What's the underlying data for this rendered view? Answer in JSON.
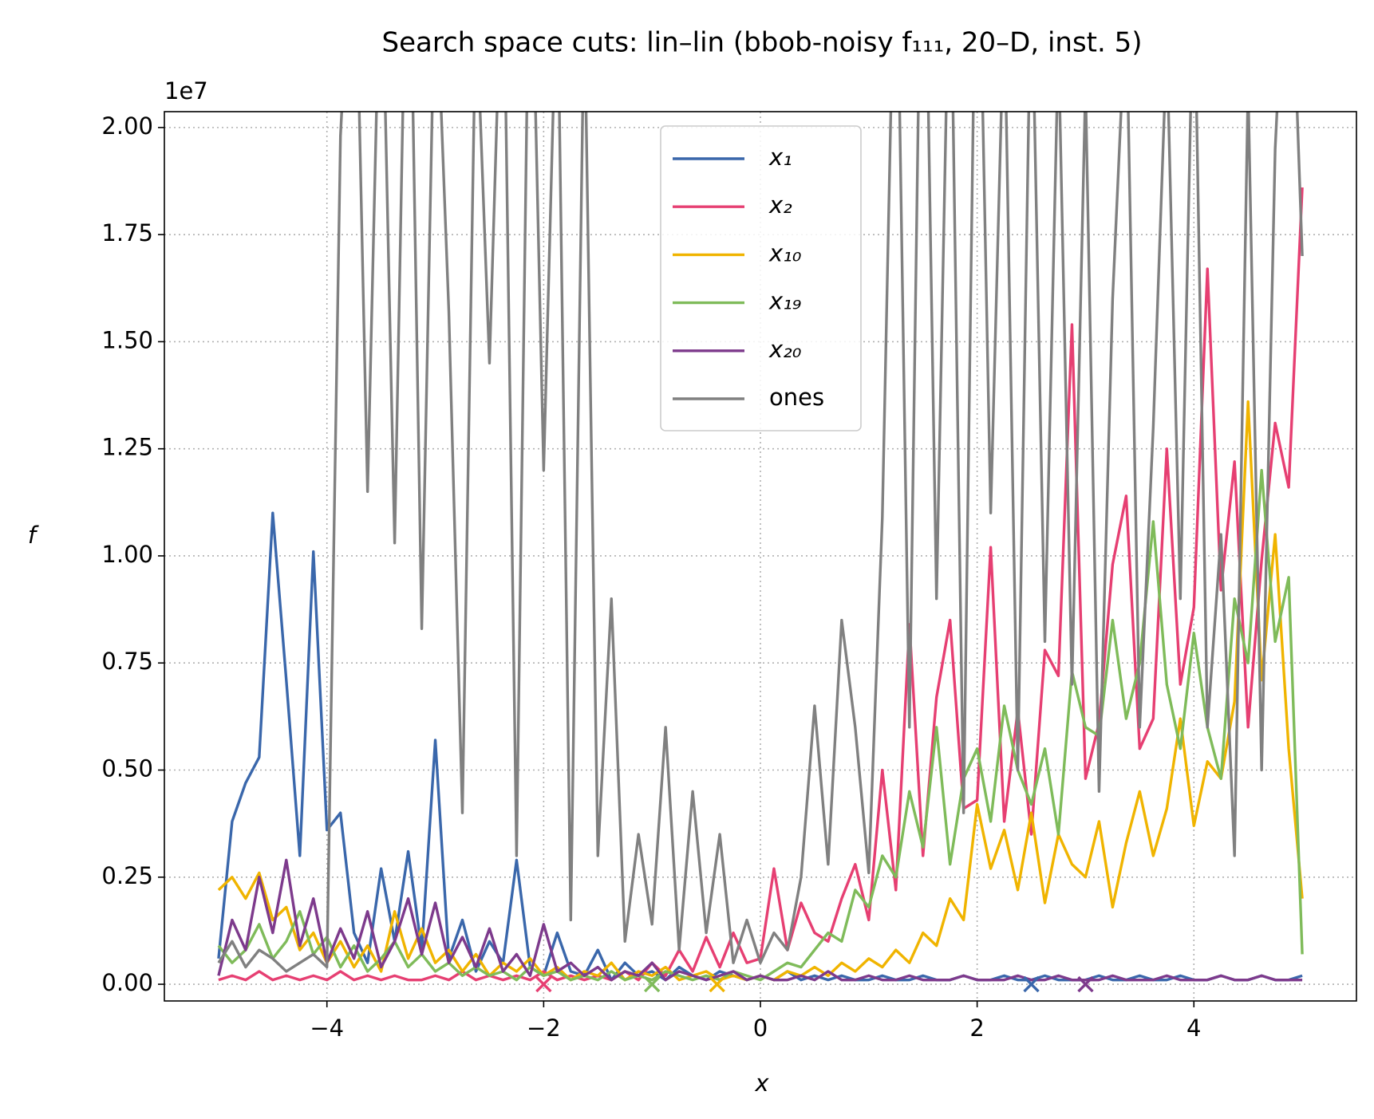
{
  "chart_data": {
    "type": "line",
    "title": "Search space cuts: lin–lin (bbob-noisy f₁₁₁, 20–D, inst. 5)",
    "x_label": "x",
    "y_label": "f",
    "y_offset_label": "1e7",
    "xlim": [
      -5.5,
      5.5
    ],
    "ylim": [
      -0.039,
      2.037
    ],
    "xticks": [
      {
        "value": -4,
        "label": "−4"
      },
      {
        "value": -2,
        "label": "−2"
      },
      0,
      2,
      4
    ],
    "yticks": [
      {
        "value": 0,
        "label": "0.00"
      },
      0.25,
      {
        "value": 0.5,
        "label": "0.50"
      },
      0.75,
      {
        "value": 1,
        "label": "1.00"
      },
      1.25,
      {
        "value": 1.5,
        "label": "1.50"
      },
      1.75,
      {
        "value": 2,
        "label": "2.00"
      }
    ],
    "grid": true,
    "legend": "upper center",
    "x": [
      -5,
      -4.875,
      -4.75,
      -4.625,
      -4.5,
      -4.375,
      -4.25,
      -4.125,
      -4,
      -3.875,
      -3.75,
      -3.625,
      -3.5,
      -3.375,
      -3.25,
      -3.125,
      -3,
      -2.875,
      -2.75,
      -2.625,
      -2.5,
      -2.375,
      -2.25,
      -2.125,
      -2,
      -1.875,
      -1.75,
      -1.625,
      -1.5,
      -1.375,
      -1.25,
      -1.125,
      -1,
      -0.875,
      -0.75,
      -0.625,
      -0.5,
      -0.375,
      -0.25,
      -0.125,
      0,
      0.125,
      0.25,
      0.375,
      0.5,
      0.625,
      0.75,
      0.875,
      1,
      1.125,
      1.25,
      1.375,
      1.5,
      1.625,
      1.75,
      1.875,
      2,
      2.125,
      2.25,
      2.375,
      2.5,
      2.625,
      2.75,
      2.875,
      3,
      3.125,
      3.25,
      3.375,
      3.5,
      3.625,
      3.75,
      3.875,
      4,
      4.125,
      4.25,
      4.375,
      4.5,
      4.625,
      4.75,
      4.875,
      5
    ],
    "series": [
      {
        "name": "x₁",
        "color": "#3a67ab",
        "optimum": 2.5,
        "values": [
          0.06,
          0.38,
          0.47,
          0.53,
          1.1,
          0.71,
          0.3,
          1.01,
          0.36,
          0.4,
          0.12,
          0.05,
          0.27,
          0.1,
          0.31,
          0.08,
          0.57,
          0.06,
          0.15,
          0.03,
          0.1,
          0.05,
          0.29,
          0.04,
          0.02,
          0.12,
          0.03,
          0.02,
          0.08,
          0.01,
          0.05,
          0.02,
          0.03,
          0.01,
          0.04,
          0.02,
          0.01,
          0.03,
          0.02,
          0.01,
          0.02,
          0.01,
          0.03,
          0.01,
          0.02,
          0.01,
          0.02,
          0.01,
          0.01,
          0.02,
          0.01,
          0.01,
          0.02,
          0.01,
          0.01,
          0.02,
          0.01,
          0.01,
          0.02,
          0.01,
          0.01,
          0.02,
          0.01,
          0.01,
          0.01,
          0.02,
          0.01,
          0.01,
          0.02,
          0.01,
          0.01,
          0.02,
          0.01,
          0.01,
          0.02,
          0.01,
          0.01,
          0.02,
          0.01,
          0.01,
          0.02
        ]
      },
      {
        "name": "x₂",
        "color": "#e63f72",
        "optimum": -2,
        "values": [
          0.01,
          0.02,
          0.01,
          0.03,
          0.01,
          0.02,
          0.01,
          0.02,
          0.01,
          0.03,
          0.01,
          0.02,
          0.01,
          0.02,
          0.01,
          0.01,
          0.02,
          0.01,
          0.03,
          0.01,
          0.02,
          0.01,
          0.02,
          0.01,
          0.03,
          0.01,
          0.02,
          0.01,
          0.02,
          0.01,
          0.03,
          0.01,
          0.05,
          0.02,
          0.08,
          0.03,
          0.11,
          0.04,
          0.12,
          0.05,
          0.06,
          0.27,
          0.08,
          0.19,
          0.12,
          0.1,
          0.2,
          0.28,
          0.15,
          0.5,
          0.22,
          0.84,
          0.3,
          0.67,
          0.85,
          0.41,
          0.43,
          1.02,
          0.38,
          0.64,
          0.35,
          0.78,
          0.72,
          1.54,
          0.48,
          0.61,
          0.98,
          1.14,
          0.55,
          0.62,
          1.25,
          0.7,
          0.88,
          1.67,
          0.92,
          1.22,
          0.6,
          0.99,
          1.31,
          1.16,
          1.86
        ]
      },
      {
        "name": "x₁₀",
        "color": "#f0b400",
        "optimum": -0.4,
        "values": [
          0.22,
          0.25,
          0.2,
          0.26,
          0.15,
          0.18,
          0.08,
          0.12,
          0.05,
          0.1,
          0.04,
          0.09,
          0.03,
          0.17,
          0.06,
          0.13,
          0.05,
          0.08,
          0.03,
          0.07,
          0.02,
          0.05,
          0.03,
          0.06,
          0.02,
          0.04,
          0.01,
          0.03,
          0.02,
          0.05,
          0.01,
          0.03,
          0.02,
          0.04,
          0.01,
          0.02,
          0.03,
          0.01,
          0.02,
          0.01,
          0.02,
          0.01,
          0.03,
          0.02,
          0.04,
          0.02,
          0.05,
          0.03,
          0.06,
          0.04,
          0.08,
          0.05,
          0.12,
          0.09,
          0.2,
          0.15,
          0.42,
          0.27,
          0.36,
          0.22,
          0.4,
          0.19,
          0.35,
          0.28,
          0.25,
          0.38,
          0.18,
          0.33,
          0.45,
          0.3,
          0.41,
          0.62,
          0.37,
          0.52,
          0.48,
          0.66,
          1.36,
          0.71,
          1.05,
          0.55,
          0.2
        ]
      },
      {
        "name": "x₁₉",
        "color": "#7fbb5a",
        "optimum": -1,
        "values": [
          0.09,
          0.05,
          0.08,
          0.14,
          0.06,
          0.1,
          0.17,
          0.07,
          0.11,
          0.04,
          0.09,
          0.03,
          0.06,
          0.1,
          0.04,
          0.07,
          0.03,
          0.05,
          0.02,
          0.04,
          0.02,
          0.03,
          0.01,
          0.04,
          0.02,
          0.03,
          0.01,
          0.02,
          0.01,
          0.03,
          0.01,
          0.02,
          0.01,
          0.03,
          0.02,
          0.01,
          0.02,
          0.01,
          0.03,
          0.02,
          0.01,
          0.03,
          0.05,
          0.04,
          0.08,
          0.12,
          0.1,
          0.22,
          0.18,
          0.3,
          0.25,
          0.45,
          0.32,
          0.6,
          0.28,
          0.48,
          0.55,
          0.38,
          0.65,
          0.5,
          0.42,
          0.55,
          0.35,
          0.73,
          0.6,
          0.58,
          0.85,
          0.62,
          0.75,
          1.08,
          0.7,
          0.55,
          0.82,
          0.6,
          0.48,
          0.9,
          0.75,
          1.2,
          0.8,
          0.95,
          0.07
        ]
      },
      {
        "name": "x₂₀",
        "color": "#7d3a8c",
        "optimum": 3,
        "values": [
          0.02,
          0.15,
          0.08,
          0.25,
          0.12,
          0.29,
          0.09,
          0.2,
          0.05,
          0.13,
          0.06,
          0.17,
          0.04,
          0.1,
          0.2,
          0.07,
          0.19,
          0.05,
          0.11,
          0.04,
          0.13,
          0.03,
          0.07,
          0.02,
          0.14,
          0.03,
          0.05,
          0.02,
          0.04,
          0.01,
          0.03,
          0.02,
          0.05,
          0.01,
          0.03,
          0.02,
          0.01,
          0.02,
          0.03,
          0.01,
          0.02,
          0.01,
          0.01,
          0.02,
          0.01,
          0.03,
          0.01,
          0.01,
          0.02,
          0.01,
          0.01,
          0.02,
          0.01,
          0.01,
          0.01,
          0.02,
          0.01,
          0.01,
          0.01,
          0.02,
          0.01,
          0.01,
          0.02,
          0.01,
          0.01,
          0.01,
          0.02,
          0.01,
          0.01,
          0.01,
          0.02,
          0.01,
          0.01,
          0.01,
          0.02,
          0.01,
          0.01,
          0.02,
          0.01,
          0.01,
          0.01
        ]
      },
      {
        "name": "ones",
        "color": "#808080",
        "values": [
          0.05,
          0.1,
          0.04,
          0.08,
          0.06,
          0.03,
          0.05,
          0.07,
          0.04,
          1.98,
          2.6,
          1.15,
          2.5,
          1.03,
          2.7,
          0.83,
          2.4,
          1.57,
          0.4,
          2.3,
          1.45,
          2.5,
          0.3,
          2.6,
          1.2,
          2.4,
          0.15,
          2.3,
          0.3,
          0.9,
          0.1,
          0.35,
          0.14,
          0.6,
          0.08,
          0.45,
          0.12,
          0.35,
          0.05,
          0.15,
          0.05,
          0.12,
          0.08,
          0.25,
          0.65,
          0.28,
          0.85,
          0.6,
          0.26,
          1.09,
          2.6,
          0.6,
          2.8,
          0.9,
          2.5,
          0.4,
          2.7,
          1.1,
          2.3,
          0.5,
          2.4,
          0.8,
          2.2,
          0.7,
          2.1,
          0.45,
          1.6,
          2.3,
          0.6,
          1.3,
          2.2,
          0.9,
          2.4,
          0.6,
          1.05,
          0.3,
          2.1,
          0.5,
          1.95,
          2.6,
          1.7
        ]
      }
    ]
  }
}
